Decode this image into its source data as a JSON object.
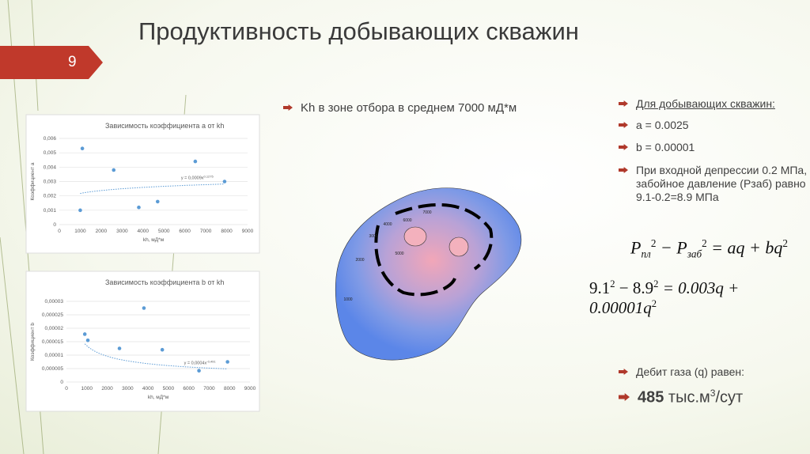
{
  "title": "Продуктивность добывающих скважин",
  "slide_number": "9",
  "middle_bullet": "Kh в зоне отбора в среднем 7000 мД*м",
  "right_bullets": [
    "Для добывающих скважин:",
    "a = 0.0025",
    "b = 0.00001",
    "При входной депрессии 0.2 МПа, забойное давление (Рзаб) равно 9.1-0.2=8.9 МПа"
  ],
  "formulas": [
    {
      "parts": [
        "P",
        "пл",
        "2",
        " − P",
        "заб",
        "2",
        " = aq + bq",
        "2"
      ]
    },
    {
      "parts": [
        "9.1",
        "2",
        " − 8.9",
        "2",
        " = 0.003q + 0.00001q",
        "2"
      ]
    }
  ],
  "result_label": "Дебит газа (q) равен:",
  "result": {
    "parts": [
      "485",
      " тыс.м",
      "3",
      "/сут"
    ]
  },
  "contour_map": {
    "levels": [
      1000,
      2000,
      3000,
      4000,
      5000,
      6000,
      7000
    ]
  },
  "chart_data": [
    {
      "type": "scatter",
      "title": "Зависимость коэффициента a от kh",
      "xlabel": "kh, мД*м",
      "ylabel": "Коэффициент a",
      "x": [
        1000,
        1100,
        2600,
        3800,
        4700,
        6500,
        7900
      ],
      "series": [
        {
          "color": "#5b9bd5",
          "values": [
            0.001,
            0.0053,
            0.0038,
            0.0012,
            0.0016,
            0.0044,
            0.003
          ]
        }
      ],
      "trendline": {
        "label": "y = 0,0009x",
        "exponent_label": "0,1275",
        "coef": 0.0009,
        "power": 0.1275
      },
      "xlim": [
        0,
        9000
      ],
      "ylim": [
        0,
        0.006
      ],
      "xticks": [
        0,
        1000,
        2000,
        3000,
        4000,
        5000,
        6000,
        7000,
        8000,
        9000
      ],
      "yticks": [
        0,
        {
          "value": 0.001,
          "label": "0,001"
        },
        {
          "value": 0.002,
          "label": "0,002"
        },
        {
          "value": 0.003,
          "label": "0,003"
        },
        {
          "value": 0.004,
          "label": "0,004"
        },
        {
          "value": 0.005,
          "label": "0,005"
        },
        {
          "value": 0.006,
          "label": "0,006"
        }
      ],
      "grid": true
    },
    {
      "type": "scatter",
      "title": "Зависимость коэффициента b от kh",
      "xlabel": "kh, мД*м",
      "ylabel": "Коэффициент b",
      "x": [
        900,
        1050,
        2600,
        3800,
        4700,
        6500,
        7900
      ],
      "series": [
        {
          "color": "#5b9bd5",
          "values": [
            1.78e-05,
            1.55e-05,
            1.25e-05,
            2.75e-05,
            1.2e-05,
            4.2e-06,
            7.5e-06
          ]
        }
      ],
      "trendline": {
        "label": "y = 0,0004x",
        "exponent_label": "-0,491",
        "coef": 0.0004,
        "power": -0.491
      },
      "xlim": [
        0,
        9000
      ],
      "ylim": [
        0,
        3e-05
      ],
      "xticks": [
        0,
        1000,
        2000,
        3000,
        4000,
        5000,
        6000,
        7000,
        8000,
        9000
      ],
      "yticks": [
        0,
        {
          "value": 5e-06,
          "label": "0,000005"
        },
        {
          "value": 1e-05,
          "label": "0,00001"
        },
        {
          "value": 1.5e-05,
          "label": "0,000015"
        },
        {
          "value": 2e-05,
          "label": "0,00002"
        },
        {
          "value": 2.5e-05,
          "label": "0,000025"
        },
        {
          "value": 3e-05,
          "label": "0,00003"
        }
      ],
      "grid": true
    }
  ]
}
